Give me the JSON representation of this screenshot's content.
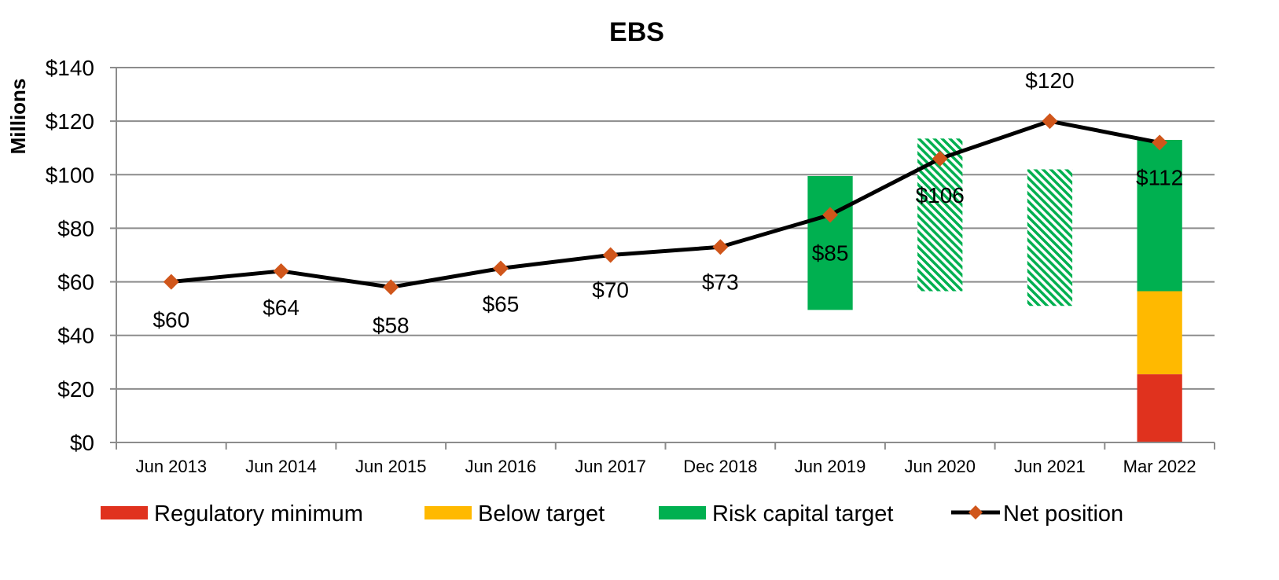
{
  "chart_data": {
    "type": "line",
    "title": "EBS",
    "ylabel": "Millions",
    "xlabel": "",
    "ylim": [
      0,
      140
    ],
    "yticks": [
      0,
      20,
      40,
      60,
      80,
      100,
      120,
      140
    ],
    "ytick_labels": [
      "$0",
      "$20",
      "$40",
      "$60",
      "$80",
      "$100",
      "$120",
      "$140"
    ],
    "categories": [
      "Jun 2013",
      "Jun 2014",
      "Jun 2015",
      "Jun 2016",
      "Jun 2017",
      "Dec 2018",
      "Jun 2019",
      "Jun 2020",
      "Jun 2021",
      "Mar 2022"
    ],
    "grid": "horizontal",
    "legend_position": "bottom",
    "series": [
      {
        "name": "Net position",
        "kind": "line",
        "color": "#000000",
        "marker_color": "#D0561B",
        "values": [
          60,
          64,
          58,
          65,
          70,
          73,
          85,
          106,
          120,
          112
        ],
        "labels": [
          "$60",
          "$64",
          "$58",
          "$65",
          "$70",
          "$73",
          "$85",
          "$106",
          "$120",
          "$112"
        ]
      }
    ],
    "bands": [
      {
        "category": "Jun 2019",
        "from": 49.5,
        "to": 99.5,
        "name": "Risk capital target",
        "color": "#00B050",
        "style": "solid"
      },
      {
        "category": "Jun 2020",
        "from": 56.5,
        "to": 113.5,
        "name": "Risk capital target",
        "color": "#00B050",
        "style": "hatched"
      },
      {
        "category": "Jun 2021",
        "from": 51,
        "to": 102,
        "name": "Risk capital target",
        "color": "#00B050",
        "style": "hatched"
      },
      {
        "category": "Mar 2022",
        "from": 0,
        "to": 25.5,
        "name": "Regulatory minimum",
        "color": "#E0321E",
        "style": "solid"
      },
      {
        "category": "Mar 2022",
        "from": 25.5,
        "to": 56.5,
        "name": "Below target",
        "color": "#FFB900",
        "style": "solid"
      },
      {
        "category": "Mar 2022",
        "from": 56.5,
        "to": 113,
        "name": "Risk capital target",
        "color": "#00B050",
        "style": "solid"
      }
    ],
    "legend": [
      {
        "name": "Regulatory minimum",
        "color": "#E0321E",
        "kind": "bar"
      },
      {
        "name": "Below target",
        "color": "#FFB900",
        "kind": "bar"
      },
      {
        "name": "Risk capital target",
        "color": "#00B050",
        "kind": "bar"
      },
      {
        "name": "Net position",
        "color": "#000000",
        "marker_color": "#D0561B",
        "kind": "line"
      }
    ]
  }
}
